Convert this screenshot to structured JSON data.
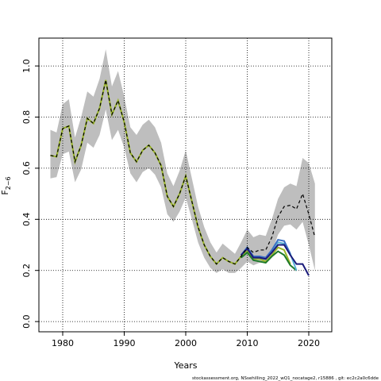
{
  "chart_data": {
    "type": "line",
    "xlabel": "Years",
    "ylabel": "F",
    "ylabel_subscript": "2−6",
    "footer": "stockassessment.org, NSsehilling_2022_wQ1_nocatage2, r15886 , git: ec2c2a0c6dde",
    "xlim": [
      1976.13,
      2023.74
    ],
    "ylim": [
      -0.04,
      1.109
    ],
    "xticks": [
      1980,
      1990,
      2000,
      2010,
      2020
    ],
    "yticks": [
      {
        "value": 0,
        "label": "0.0"
      },
      0.2,
      0.4,
      0.6,
      0.8,
      {
        "value": 1,
        "label": "1.0"
      }
    ],
    "grid": true,
    "x": [
      1978,
      1979,
      1980,
      1981,
      1982,
      1983,
      1984,
      1985,
      1986,
      1987,
      1988,
      1989,
      1990,
      1991,
      1992,
      1993,
      1994,
      1995,
      1996,
      1997,
      1998,
      1999,
      2000,
      2001,
      2002,
      2003,
      2004,
      2005,
      2006,
      2007,
      2008,
      2009,
      2010,
      2011,
      2012,
      2013,
      2014,
      2015,
      2016,
      2017,
      2018,
      2019,
      2020,
      2021
    ],
    "ci": {
      "color": "#bebebe",
      "upper": [
        0.75,
        0.74,
        0.85,
        0.87,
        0.72,
        0.8,
        0.9,
        0.88,
        0.95,
        1.065,
        0.92,
        0.98,
        0.88,
        0.76,
        0.73,
        0.77,
        0.79,
        0.76,
        0.7,
        0.58,
        0.53,
        0.59,
        0.67,
        0.56,
        0.45,
        0.37,
        0.31,
        0.27,
        0.305,
        0.285,
        0.265,
        0.31,
        0.36,
        0.33,
        0.34,
        0.335,
        0.4,
        0.48,
        0.525,
        0.54,
        0.53,
        0.64,
        0.62,
        0.54
      ],
      "lower": [
        0.56,
        0.565,
        0.655,
        0.665,
        0.545,
        0.595,
        0.7,
        0.68,
        0.73,
        0.83,
        0.71,
        0.75,
        0.68,
        0.58,
        0.545,
        0.585,
        0.6,
        0.575,
        0.525,
        0.42,
        0.39,
        0.43,
        0.485,
        0.4,
        0.31,
        0.25,
        0.21,
        0.19,
        0.205,
        0.19,
        0.19,
        0.21,
        0.235,
        0.22,
        0.23,
        0.23,
        0.27,
        0.34,
        0.375,
        0.38,
        0.36,
        0.39,
        0.3,
        0.2
      ]
    },
    "values": [
      0.65,
      0.645,
      0.755,
      0.765,
      0.625,
      0.69,
      0.795,
      0.775,
      0.835,
      0.945,
      0.81,
      0.865,
      0.78,
      0.66,
      0.625,
      0.67,
      0.69,
      0.66,
      0.61,
      0.49,
      0.45,
      0.5,
      0.57,
      0.47,
      0.37,
      0.3,
      0.255,
      0.225,
      0.25,
      0.235,
      0.225,
      0.255,
      0.29,
      0.27,
      0.28,
      0.28,
      0.33,
      0.41,
      0.45,
      0.455,
      0.44,
      0.5,
      0.42,
      0.33
    ],
    "color": "#000000",
    "series": [
      {
        "color": "#1a1a7a",
        "x": [
          2009,
          2010,
          2011,
          2012,
          2013,
          2014,
          2015,
          2016,
          2017,
          2018,
          2019,
          2020
        ],
        "values": [
          0.26,
          0.285,
          0.25,
          0.25,
          0.245,
          0.27,
          0.3,
          0.3,
          0.26,
          0.225,
          0.225,
          0.18
        ]
      },
      {
        "color": "#3a6fc4",
        "x": [
          2009,
          2010,
          2011,
          2012,
          2013,
          2014,
          2015,
          2016,
          2017
        ],
        "values": [
          0.26,
          0.29,
          0.255,
          0.255,
          0.25,
          0.28,
          0.32,
          0.315,
          0.265
        ]
      },
      {
        "color": "#5ab4d6",
        "x": [
          2009,
          2010,
          2011,
          2012,
          2013,
          2014,
          2015,
          2016,
          2017,
          2018
        ],
        "values": [
          0.26,
          0.29,
          0.25,
          0.25,
          0.245,
          0.275,
          0.31,
          0.305,
          0.265,
          0.2
        ]
      },
      {
        "color": "#1e7a2a",
        "x": [
          2009,
          2010,
          2011,
          2012,
          2013,
          2014,
          2015,
          2016,
          2017,
          2018
        ],
        "values": [
          0.25,
          0.27,
          0.24,
          0.235,
          0.23,
          0.255,
          0.275,
          0.26,
          0.22,
          0.2
        ]
      },
      {
        "color": "#9ab52a",
        "x": [
          1978,
          1979,
          1980,
          1981,
          1982,
          1983,
          1984,
          1985,
          1986,
          1987,
          1988,
          1989,
          1990,
          1991,
          1992,
          1993,
          1994,
          1995,
          1996,
          1997,
          1998,
          1999,
          2000,
          2001,
          2002,
          2003,
          2004,
          2005,
          2006,
          2007,
          2008,
          2009,
          2010,
          2011,
          2012,
          2013,
          2014,
          2015,
          2016,
          2017
        ],
        "values": [
          0.65,
          0.645,
          0.755,
          0.765,
          0.625,
          0.69,
          0.795,
          0.775,
          0.835,
          0.945,
          0.81,
          0.865,
          0.78,
          0.66,
          0.625,
          0.67,
          0.69,
          0.66,
          0.61,
          0.49,
          0.45,
          0.5,
          0.57,
          0.47,
          0.37,
          0.3,
          0.255,
          0.225,
          0.25,
          0.235,
          0.225,
          0.255,
          0.275,
          0.245,
          0.245,
          0.235,
          0.26,
          0.29,
          0.28,
          0.225
        ]
      }
    ]
  }
}
